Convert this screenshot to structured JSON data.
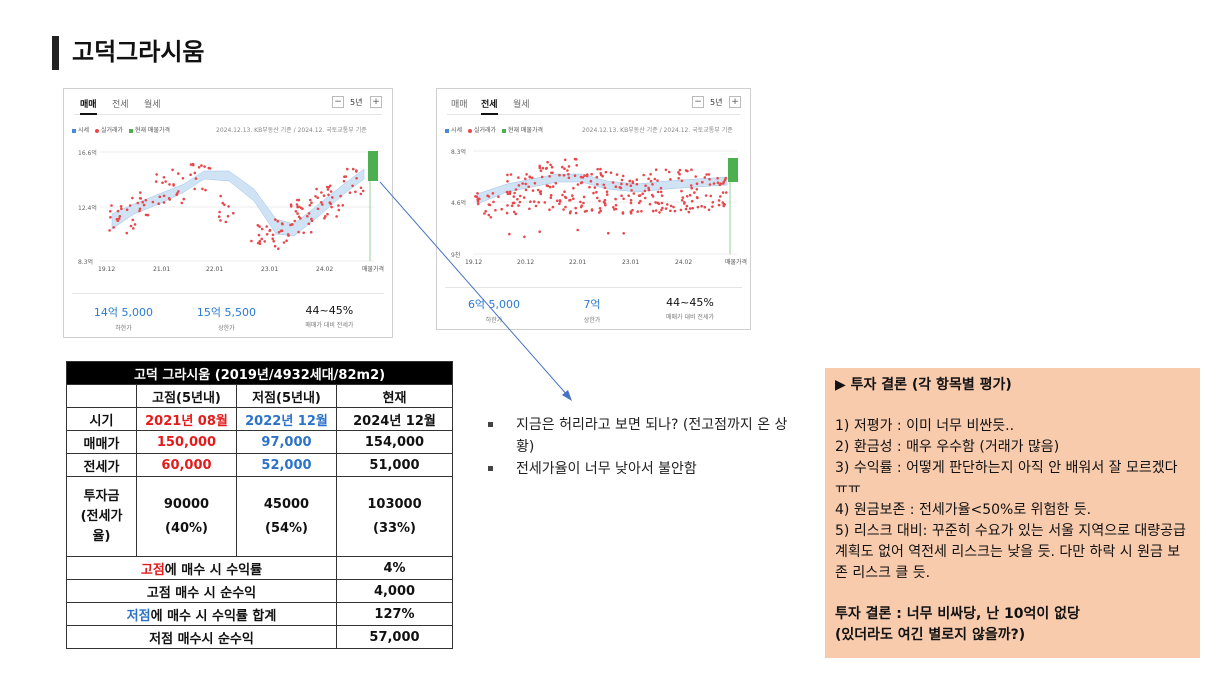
{
  "page": {
    "title": "고덕그라시움"
  },
  "left_chart": {
    "tabs": [
      "매매",
      "전세",
      "월세"
    ],
    "active_tab": 0,
    "period": "5년",
    "minus": "−",
    "plus": "+",
    "legend": [
      "시세",
      "실거래가",
      "현재 매물가격"
    ],
    "source": "2024.12.13. KB부동산 기준 / 2024.12. 국토교통부 기준",
    "y_ticks": [
      "16.6억",
      "12.4억",
      "8.3억"
    ],
    "x_ticks": [
      "19.12",
      "21.01",
      "22.01",
      "23.01",
      "24.02",
      "매물가격"
    ],
    "stats": [
      {
        "value": "14억 5,000",
        "label": "하한가"
      },
      {
        "value": "15억 5,500",
        "label": "상한가"
      },
      {
        "value": "44~45%",
        "label": "매매가 대비 전세가"
      }
    ]
  },
  "right_chart": {
    "tabs": [
      "매매",
      "전세",
      "월세"
    ],
    "active_tab": 1,
    "period": "5년",
    "minus": "−",
    "plus": "+",
    "legend": [
      "시세",
      "실거래가",
      "현재 매물가격"
    ],
    "source": "2024.12.13. KB부동산 기준 / 2024.12. 국토교통부 기준",
    "y_ticks": [
      "8.3억",
      "4.6억",
      "9천"
    ],
    "x_ticks": [
      "19.12",
      "20.12",
      "22.01",
      "23.01",
      "24.02",
      "매물가격"
    ],
    "stats": [
      {
        "value": "6억 5,000",
        "label": "하한가"
      },
      {
        "value": "7억",
        "label": "상한가"
      },
      {
        "value": "44~45%",
        "label": "매매가 대비 전세가"
      }
    ]
  },
  "colors": {
    "series_blue": "#4a89d8",
    "dot_red": "#e8484c",
    "bar_green": "#4cb050",
    "band": "#cfe3f5"
  },
  "table": {
    "title": "고덕 그라시움 (2019년/4932세대/82m2)",
    "headers": [
      "고점(5년내)",
      "저점(5년내)",
      "현재"
    ],
    "rows": [
      {
        "label": "시기",
        "high": "2021년 08월",
        "low": "2022년 12월",
        "now": "2024년 12월"
      },
      {
        "label": "매매가",
        "high": "150,000",
        "low": "97,000",
        "now": "154,000"
      },
      {
        "label": "전세가",
        "high": "60,000",
        "low": "52,000",
        "now": "51,000"
      }
    ],
    "capital": {
      "label_lines": [
        "투자금",
        "(전세가",
        "율)"
      ],
      "high_amt": "90000",
      "high_pct": "(40%)",
      "low_amt": "45000",
      "low_pct": "(54%)",
      "now_amt": "103000",
      "now_pct": "(33%)"
    },
    "summary": [
      {
        "hl": "고점",
        "text": "에 매수 시 수익률",
        "value": "4%",
        "hl_color": "red"
      },
      {
        "hl": "",
        "text": "고점 매수 시 순수익",
        "value": "4,000",
        "hl_color": ""
      },
      {
        "hl": "저점",
        "text": "에 매수 시 수익률 합계",
        "value": "127%",
        "hl_color": "blue"
      },
      {
        "hl": "",
        "text": "저점 매수시 순수익",
        "value": "57,000",
        "hl_color": ""
      }
    ]
  },
  "notes": [
    "지금은 허리라고 보면 되나? (전고점까지 온 상황)",
    "전세가율이 너무 낮아서 불안함"
  ],
  "conclusion": {
    "title": "▶ 투자 결론 (각 항목별 평가)",
    "items": [
      "1) 저평가 : 이미 너무 비싼듯..",
      "2) 환금성 : 매우 우수함 (거래가 많음)",
      "3) 수익률 : 어떻게 판단하는지 아직 안 배워서 잘 모르겠다 ㅠㅠ",
      "4) 원금보존 : 전세가율<50%로 위험한 듯.",
      "5) 리스크 대비: 꾸준히 수요가 있는 서울 지역으로 대량공급 계획도 없어 역전세 리스크는 낮을 듯. 다만 하락 시 원금 보존 리스크 클 듯."
    ],
    "final_line1": "투자 결론 : 너무 비싸당, 난 10억이 없당",
    "final_line2": "(있더라도 여긴 별로지 않을까?)"
  }
}
